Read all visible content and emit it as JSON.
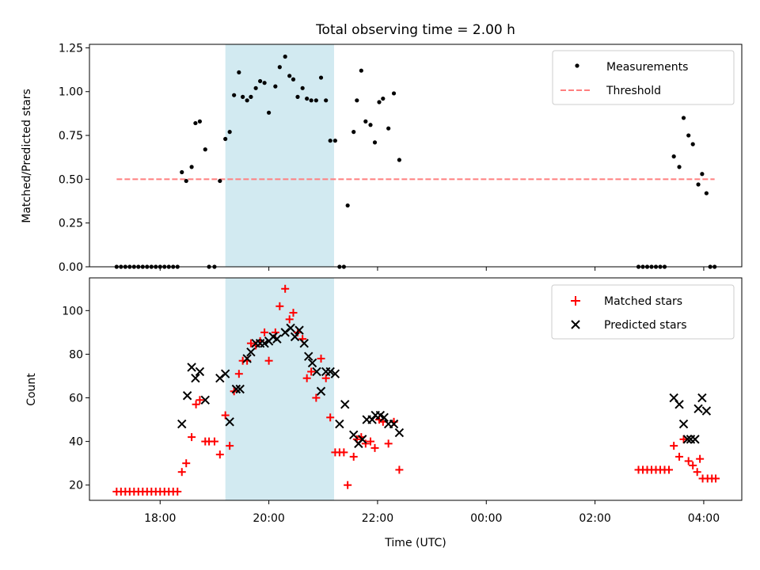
{
  "figure": {
    "title": "Total observing time = 2.00 h",
    "xlabel": "Time (UTC)",
    "x_ticks": [
      {
        "h": 18,
        "label": "18:00"
      },
      {
        "h": 20,
        "label": "20:00"
      },
      {
        "h": 22,
        "label": "22:00"
      },
      {
        "h": 24,
        "label": "00:00"
      },
      {
        "h": 26,
        "label": "02:00"
      },
      {
        "h": 28,
        "label": "04:00"
      }
    ],
    "xlim": [
      16.7,
      28.7
    ],
    "highlight_span": [
      19.2,
      21.2
    ],
    "colors": {
      "measurements": "#000000",
      "threshold": "#ff7f7f",
      "matched": "#ff0000",
      "predicted": "#000000",
      "span": "#add8e6"
    }
  },
  "chart_data": [
    {
      "type": "scatter",
      "ylabel": "Matched/Predicted stars",
      "ylim": [
        0,
        1.27
      ],
      "y_ticks": [
        {
          "v": 0,
          "label": "0.00"
        },
        {
          "v": 0.25,
          "label": "0.25"
        },
        {
          "v": 0.5,
          "label": "0.50"
        },
        {
          "v": 0.75,
          "label": "0.75"
        },
        {
          "v": 1.0,
          "label": "1.00"
        },
        {
          "v": 1.25,
          "label": "1.25"
        }
      ],
      "legend": {
        "position": "upper right",
        "entries": [
          "Measurements",
          "Threshold"
        ]
      },
      "threshold": {
        "name": "Threshold",
        "y": 0.5,
        "x_range": [
          17.2,
          28.2
        ]
      },
      "series": [
        {
          "name": "Measurements",
          "points": [
            [
              17.2,
              0
            ],
            [
              17.28,
              0
            ],
            [
              17.36,
              0
            ],
            [
              17.44,
              0
            ],
            [
              17.52,
              0
            ],
            [
              17.6,
              0
            ],
            [
              17.68,
              0
            ],
            [
              17.76,
              0
            ],
            [
              17.84,
              0
            ],
            [
              17.92,
              0
            ],
            [
              18.0,
              0
            ],
            [
              18.08,
              0
            ],
            [
              18.16,
              0
            ],
            [
              18.24,
              0
            ],
            [
              18.32,
              0
            ],
            [
              18.4,
              0.54
            ],
            [
              18.48,
              0.49
            ],
            [
              18.58,
              0.57
            ],
            [
              18.65,
              0.82
            ],
            [
              18.73,
              0.83
            ],
            [
              18.83,
              0.67
            ],
            [
              18.9,
              0
            ],
            [
              19.0,
              0
            ],
            [
              19.1,
              0.49
            ],
            [
              19.2,
              0.73
            ],
            [
              19.28,
              0.77
            ],
            [
              19.36,
              0.98
            ],
            [
              19.45,
              1.11
            ],
            [
              19.52,
              0.97
            ],
            [
              19.6,
              0.95
            ],
            [
              19.67,
              0.97
            ],
            [
              19.76,
              1.02
            ],
            [
              19.84,
              1.06
            ],
            [
              19.92,
              1.05
            ],
            [
              20.0,
              0.88
            ],
            [
              20.12,
              1.03
            ],
            [
              20.2,
              1.14
            ],
            [
              20.3,
              1.2
            ],
            [
              20.38,
              1.09
            ],
            [
              20.45,
              1.07
            ],
            [
              20.53,
              0.97
            ],
            [
              20.62,
              1.02
            ],
            [
              20.7,
              0.96
            ],
            [
              20.78,
              0.95
            ],
            [
              20.87,
              0.95
            ],
            [
              20.96,
              1.08
            ],
            [
              21.05,
              0.95
            ],
            [
              21.13,
              0.72
            ],
            [
              21.22,
              0.72
            ],
            [
              21.3,
              0
            ],
            [
              21.38,
              0
            ],
            [
              21.45,
              0.35
            ],
            [
              21.56,
              0.77
            ],
            [
              21.62,
              0.95
            ],
            [
              21.7,
              1.12
            ],
            [
              21.78,
              0.83
            ],
            [
              21.87,
              0.81
            ],
            [
              21.95,
              0.71
            ],
            [
              22.03,
              0.94
            ],
            [
              22.1,
              0.96
            ],
            [
              22.2,
              0.79
            ],
            [
              22.3,
              0.99
            ],
            [
              22.4,
              0.61
            ],
            [
              26.8,
              0
            ],
            [
              26.88,
              0
            ],
            [
              26.96,
              0
            ],
            [
              27.04,
              0
            ],
            [
              27.12,
              0
            ],
            [
              27.2,
              0
            ],
            [
              27.28,
              0
            ],
            [
              27.45,
              0.63
            ],
            [
              27.55,
              0.57
            ],
            [
              27.63,
              0.85
            ],
            [
              27.72,
              0.75
            ],
            [
              27.8,
              0.7
            ],
            [
              27.9,
              0.47
            ],
            [
              27.97,
              0.53
            ],
            [
              28.05,
              0.42
            ],
            [
              28.12,
              0
            ],
            [
              28.2,
              0
            ]
          ]
        }
      ]
    },
    {
      "type": "scatter",
      "ylabel": "Count",
      "ylim": [
        13,
        115
      ],
      "y_ticks": [
        {
          "v": 20,
          "label": "20"
        },
        {
          "v": 40,
          "label": "40"
        },
        {
          "v": 60,
          "label": "60"
        },
        {
          "v": 80,
          "label": "80"
        },
        {
          "v": 100,
          "label": "100"
        }
      ],
      "legend": {
        "position": "upper right",
        "entries": [
          "Matched stars",
          "Predicted stars"
        ]
      },
      "series": [
        {
          "name": "Matched stars",
          "points": [
            [
              17.2,
              17
            ],
            [
              17.28,
              17
            ],
            [
              17.36,
              17
            ],
            [
              17.44,
              17
            ],
            [
              17.52,
              17
            ],
            [
              17.6,
              17
            ],
            [
              17.68,
              17
            ],
            [
              17.76,
              17
            ],
            [
              17.84,
              17
            ],
            [
              17.92,
              17
            ],
            [
              18.0,
              17
            ],
            [
              18.08,
              17
            ],
            [
              18.16,
              17
            ],
            [
              18.24,
              17
            ],
            [
              18.32,
              17
            ],
            [
              18.4,
              26
            ],
            [
              18.48,
              30
            ],
            [
              18.58,
              42
            ],
            [
              18.66,
              57
            ],
            [
              18.73,
              59
            ],
            [
              18.83,
              40
            ],
            [
              18.9,
              40
            ],
            [
              19.0,
              40
            ],
            [
              19.1,
              34
            ],
            [
              19.2,
              52
            ],
            [
              19.28,
              38
            ],
            [
              19.36,
              63
            ],
            [
              19.45,
              71
            ],
            [
              19.52,
              77
            ],
            [
              19.6,
              77
            ],
            [
              19.67,
              85
            ],
            [
              19.76,
              84
            ],
            [
              19.84,
              86
            ],
            [
              19.92,
              90
            ],
            [
              20.0,
              77
            ],
            [
              20.12,
              90
            ],
            [
              20.2,
              102
            ],
            [
              20.3,
              110
            ],
            [
              20.38,
              96
            ],
            [
              20.45,
              99
            ],
            [
              20.53,
              90
            ],
            [
              20.62,
              87
            ],
            [
              20.7,
              69
            ],
            [
              20.78,
              72
            ],
            [
              20.87,
              60
            ],
            [
              20.96,
              78
            ],
            [
              21.05,
              69
            ],
            [
              21.13,
              51
            ],
            [
              21.22,
              35
            ],
            [
              21.3,
              35
            ],
            [
              21.38,
              35
            ],
            [
              21.45,
              20
            ],
            [
              21.56,
              33
            ],
            [
              21.62,
              41
            ],
            [
              21.7,
              42
            ],
            [
              21.78,
              39
            ],
            [
              21.87,
              40
            ],
            [
              21.95,
              37
            ],
            [
              22.03,
              50
            ],
            [
              22.1,
              49
            ],
            [
              22.2,
              39
            ],
            [
              22.3,
              49
            ],
            [
              22.4,
              27
            ],
            [
              26.8,
              27
            ],
            [
              26.88,
              27
            ],
            [
              26.96,
              27
            ],
            [
              27.04,
              27
            ],
            [
              27.12,
              27
            ],
            [
              27.2,
              27
            ],
            [
              27.28,
              27
            ],
            [
              27.36,
              27
            ],
            [
              27.45,
              38
            ],
            [
              27.55,
              33
            ],
            [
              27.63,
              41
            ],
            [
              27.72,
              31
            ],
            [
              27.8,
              29
            ],
            [
              27.88,
              26
            ],
            [
              27.93,
              32
            ],
            [
              27.98,
              23
            ],
            [
              28.07,
              23
            ],
            [
              28.15,
              23
            ],
            [
              28.22,
              23
            ]
          ]
        },
        {
          "name": "Predicted stars",
          "points": [
            [
              18.4,
              48
            ],
            [
              18.5,
              61
            ],
            [
              18.58,
              74
            ],
            [
              18.65,
              69
            ],
            [
              18.73,
              72
            ],
            [
              18.83,
              59
            ],
            [
              19.1,
              69
            ],
            [
              19.2,
              71
            ],
            [
              19.28,
              49
            ],
            [
              19.4,
              64
            ],
            [
              19.47,
              64
            ],
            [
              19.6,
              78
            ],
            [
              19.67,
              81
            ],
            [
              19.76,
              85
            ],
            [
              19.84,
              85
            ],
            [
              19.92,
              85
            ],
            [
              20.0,
              86
            ],
            [
              20.08,
              88
            ],
            [
              20.15,
              87
            ],
            [
              20.3,
              90
            ],
            [
              20.4,
              92
            ],
            [
              20.48,
              88
            ],
            [
              20.56,
              91
            ],
            [
              20.65,
              85
            ],
            [
              20.73,
              79
            ],
            [
              20.8,
              76
            ],
            [
              20.88,
              72
            ],
            [
              20.96,
              63
            ],
            [
              21.05,
              72
            ],
            [
              21.13,
              72
            ],
            [
              21.22,
              71
            ],
            [
              21.3,
              48
            ],
            [
              21.4,
              57
            ],
            [
              21.56,
              43
            ],
            [
              21.65,
              39
            ],
            [
              21.72,
              41
            ],
            [
              21.8,
              50
            ],
            [
              21.9,
              50
            ],
            [
              21.96,
              52
            ],
            [
              22.05,
              52
            ],
            [
              22.12,
              51
            ],
            [
              22.2,
              48
            ],
            [
              22.3,
              48
            ],
            [
              22.4,
              44
            ],
            [
              27.45,
              60
            ],
            [
              27.55,
              57
            ],
            [
              27.63,
              48
            ],
            [
              27.7,
              41
            ],
            [
              27.76,
              41
            ],
            [
              27.84,
              41
            ],
            [
              27.9,
              55
            ],
            [
              27.97,
              60
            ],
            [
              28.05,
              54
            ]
          ]
        }
      ]
    }
  ]
}
